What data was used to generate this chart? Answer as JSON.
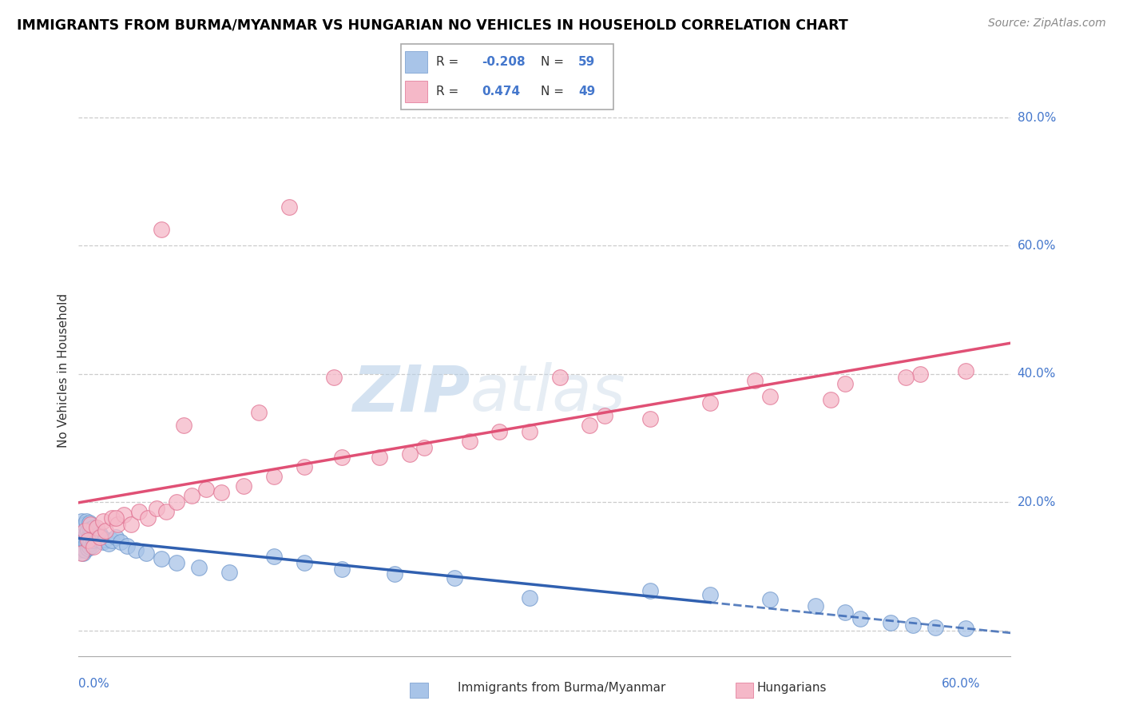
{
  "title": "IMMIGRANTS FROM BURMA/MYANMAR VS HUNGARIAN NO VEHICLES IN HOUSEHOLD CORRELATION CHART",
  "source": "Source: ZipAtlas.com",
  "ylabel": "No Vehicles in Household",
  "blue_color": "#a8c4e8",
  "blue_edge_color": "#7098cc",
  "pink_color": "#f5b8c8",
  "pink_edge_color": "#e07090",
  "blue_line_color": "#3060b0",
  "pink_line_color": "#e05075",
  "xlim": [
    0.0,
    0.62
  ],
  "ylim": [
    -0.04,
    0.85
  ],
  "ytick_vals": [
    0.0,
    0.2,
    0.4,
    0.6,
    0.8
  ],
  "ytick_labels": [
    "0.0%",
    "20.0%",
    "40.0%",
    "60.0%",
    "80.0%"
  ],
  "watermark_zip": "ZIP",
  "watermark_atlas": "atlas",
  "legend_r1_label": "R = ",
  "legend_r1_val": "-0.208",
  "legend_n1_label": "N = ",
  "legend_n1_val": "59",
  "legend_r2_label": "R =  ",
  "legend_r2_val": "0.474",
  "legend_n2_label": "N = ",
  "legend_n2_val": "49",
  "blue_scatter_x": [
    0.001,
    0.001,
    0.002,
    0.002,
    0.002,
    0.003,
    0.003,
    0.003,
    0.004,
    0.004,
    0.004,
    0.005,
    0.005,
    0.005,
    0.006,
    0.006,
    0.007,
    0.007,
    0.007,
    0.008,
    0.008,
    0.009,
    0.009,
    0.01,
    0.01,
    0.011,
    0.012,
    0.013,
    0.014,
    0.015,
    0.016,
    0.018,
    0.02,
    0.022,
    0.025,
    0.028,
    0.032,
    0.038,
    0.045,
    0.055,
    0.065,
    0.08,
    0.1,
    0.13,
    0.15,
    0.175,
    0.21,
    0.25,
    0.3,
    0.38,
    0.42,
    0.46,
    0.49,
    0.51,
    0.52,
    0.54,
    0.555,
    0.57,
    0.59
  ],
  "blue_scatter_y": [
    0.125,
    0.145,
    0.13,
    0.155,
    0.17,
    0.12,
    0.14,
    0.16,
    0.125,
    0.145,
    0.165,
    0.135,
    0.15,
    0.17,
    0.128,
    0.155,
    0.13,
    0.148,
    0.168,
    0.135,
    0.158,
    0.132,
    0.152,
    0.14,
    0.16,
    0.145,
    0.148,
    0.142,
    0.15,
    0.145,
    0.138,
    0.142,
    0.135,
    0.14,
    0.145,
    0.138,
    0.132,
    0.125,
    0.12,
    0.112,
    0.105,
    0.098,
    0.09,
    0.115,
    0.105,
    0.095,
    0.088,
    0.082,
    0.05,
    0.062,
    0.055,
    0.048,
    0.038,
    0.028,
    0.018,
    0.012,
    0.008,
    0.005,
    0.003
  ],
  "pink_scatter_x": [
    0.002,
    0.004,
    0.006,
    0.008,
    0.01,
    0.012,
    0.014,
    0.016,
    0.018,
    0.022,
    0.026,
    0.03,
    0.035,
    0.04,
    0.046,
    0.052,
    0.058,
    0.065,
    0.075,
    0.085,
    0.095,
    0.11,
    0.13,
    0.15,
    0.175,
    0.2,
    0.23,
    0.26,
    0.3,
    0.34,
    0.38,
    0.42,
    0.46,
    0.51,
    0.56,
    0.59,
    0.025,
    0.07,
    0.12,
    0.17,
    0.22,
    0.28,
    0.35,
    0.45,
    0.5,
    0.55,
    0.055,
    0.14,
    0.32
  ],
  "pink_scatter_y": [
    0.12,
    0.155,
    0.14,
    0.165,
    0.13,
    0.16,
    0.145,
    0.17,
    0.155,
    0.175,
    0.165,
    0.18,
    0.165,
    0.185,
    0.175,
    0.19,
    0.185,
    0.2,
    0.21,
    0.22,
    0.215,
    0.225,
    0.24,
    0.255,
    0.27,
    0.27,
    0.285,
    0.295,
    0.31,
    0.32,
    0.33,
    0.355,
    0.365,
    0.385,
    0.4,
    0.405,
    0.175,
    0.32,
    0.34,
    0.395,
    0.275,
    0.31,
    0.335,
    0.39,
    0.36,
    0.395,
    0.625,
    0.66,
    0.395
  ]
}
